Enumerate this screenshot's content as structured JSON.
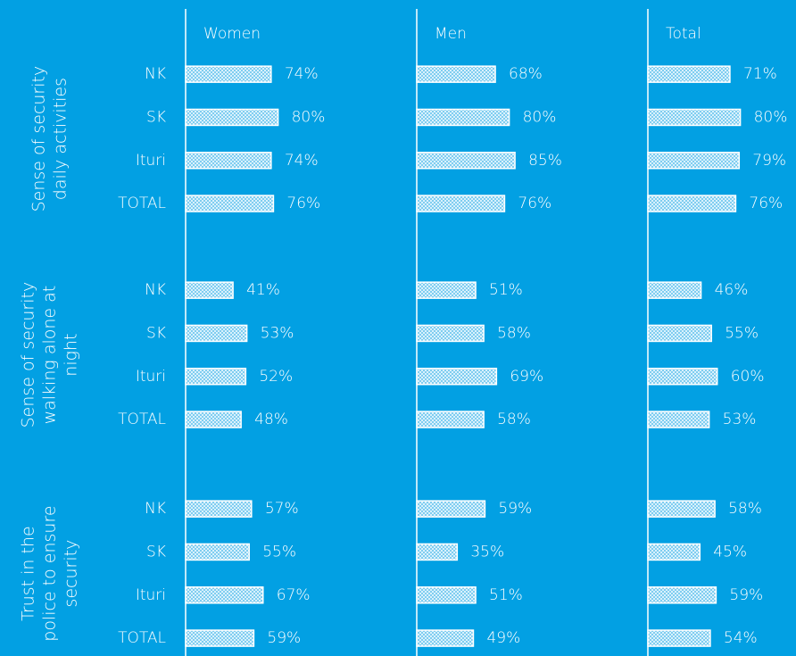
{
  "chart_data": {
    "type": "bar",
    "groups": [
      [
        "Sense of security",
        "daily activities"
      ],
      [
        "Sense of security",
        "walking alone at",
        "night"
      ],
      [
        "Trust in the",
        "police to ensure",
        "security"
      ]
    ],
    "categories": [
      "NK",
      "SK",
      "Ituri",
      "TOTAL",
      "NK",
      "SK",
      "Ituri",
      "TOTAL",
      "NK",
      "SK",
      "Ituri",
      "TOTAL"
    ],
    "xlim": [
      0,
      200
    ],
    "color": "#bfe7f8",
    "series": [
      {
        "name": "Women",
        "values": [
          74,
          80,
          74,
          76,
          41,
          53,
          52,
          48,
          57,
          55,
          67,
          59
        ],
        "value_labels": [
          "74%",
          "80%",
          "74%",
          "76%",
          "41%",
          "53%",
          "52%",
          "48%",
          "57%",
          "55%",
          "67%",
          "59%"
        ]
      },
      {
        "name": "Men",
        "values": [
          68,
          80,
          85,
          76,
          51,
          58,
          69,
          58,
          59,
          35,
          51,
          49
        ],
        "value_labels": [
          "68%",
          "80%",
          "85%",
          "76%",
          "51%",
          "58%",
          "69%",
          "58%",
          "59%",
          "35%",
          "51%",
          "49%"
        ]
      },
      {
        "name": "Total",
        "values": [
          71,
          80,
          79,
          76,
          46,
          55,
          60,
          53,
          58,
          45,
          59,
          54
        ],
        "value_labels": [
          "71%",
          "80%",
          "79%",
          "76%",
          "46%",
          "55%",
          "60%",
          "53%",
          "58%",
          "45%",
          "59%",
          "54%"
        ]
      }
    ]
  }
}
